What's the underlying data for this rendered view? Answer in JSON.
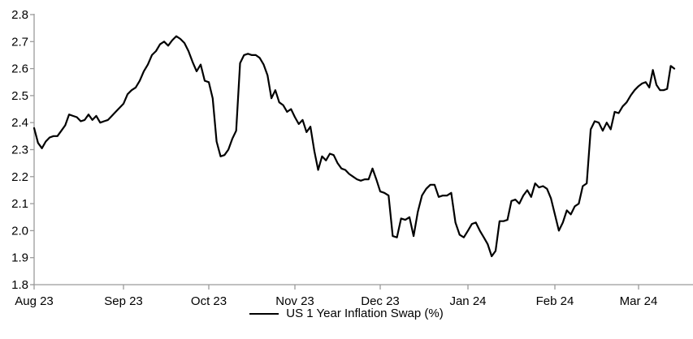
{
  "chart_data": {
    "type": "line",
    "title": "",
    "legend": "US 1 Year Inflation Swap (%)",
    "series_name": "US 1 Year Inflation Swap (%)",
    "legend_position": "bottom-center",
    "grid": false,
    "line_color": "#000000",
    "axis_color": "#9b9b9b",
    "text_color": "#000000",
    "ylim": [
      1.8,
      2.8
    ],
    "y_ticks": [
      "1.8",
      "1.9",
      "2.0",
      "2.1",
      "2.2",
      "2.3",
      "2.4",
      "2.5",
      "2.6",
      "2.7",
      "2.8"
    ],
    "x_tick_labels": [
      "Aug 23",
      "Sep 23",
      "Oct 23",
      "Nov 23",
      "Dec 23",
      "Jan 24",
      "Feb 24",
      "Mar 24"
    ],
    "x_tick_indices": [
      0,
      23,
      44,
      66,
      88,
      109,
      131,
      152
    ],
    "end_index": 162,
    "values": [
      2.38,
      2.325,
      2.305,
      2.33,
      2.345,
      2.35,
      2.35,
      2.37,
      2.39,
      2.43,
      2.425,
      2.42,
      2.405,
      2.41,
      2.43,
      2.41,
      2.425,
      2.4,
      2.405,
      2.41,
      2.425,
      2.44,
      2.455,
      2.47,
      2.505,
      2.52,
      2.53,
      2.555,
      2.59,
      2.615,
      2.65,
      2.665,
      2.69,
      2.7,
      2.685,
      2.705,
      2.72,
      2.71,
      2.695,
      2.665,
      2.625,
      2.59,
      2.615,
      2.555,
      2.55,
      2.49,
      2.33,
      2.275,
      2.28,
      2.3,
      2.34,
      2.37,
      2.62,
      2.65,
      2.655,
      2.65,
      2.65,
      2.64,
      2.615,
      2.575,
      2.49,
      2.52,
      2.475,
      2.465,
      2.44,
      2.45,
      2.42,
      2.395,
      2.41,
      2.365,
      2.385,
      2.295,
      2.225,
      2.275,
      2.26,
      2.285,
      2.28,
      2.25,
      2.23,
      2.225,
      2.21,
      2.2,
      2.19,
      2.185,
      2.19,
      2.19,
      2.23,
      2.19,
      2.145,
      2.14,
      2.13,
      1.98,
      1.975,
      2.045,
      2.04,
      2.05,
      1.98,
      2.07,
      2.13,
      2.155,
      2.17,
      2.17,
      2.125,
      2.13,
      2.13,
      2.14,
      2.03,
      1.985,
      1.975,
      2.0,
      2.025,
      2.03,
      2.0,
      1.975,
      1.95,
      1.905,
      1.925,
      2.035,
      2.035,
      2.04,
      2.11,
      2.115,
      2.1,
      2.13,
      2.15,
      2.125,
      2.175,
      2.16,
      2.165,
      2.155,
      2.12,
      2.06,
      2.0,
      2.03,
      2.075,
      2.06,
      2.09,
      2.1,
      2.165,
      2.175,
      2.375,
      2.405,
      2.4,
      2.37,
      2.4,
      2.375,
      2.44,
      2.435,
      2.46,
      2.475,
      2.5,
      2.52,
      2.535,
      2.545,
      2.55,
      2.53,
      2.595,
      2.54,
      2.52,
      2.52,
      2.525,
      2.61,
      2.6
    ]
  }
}
